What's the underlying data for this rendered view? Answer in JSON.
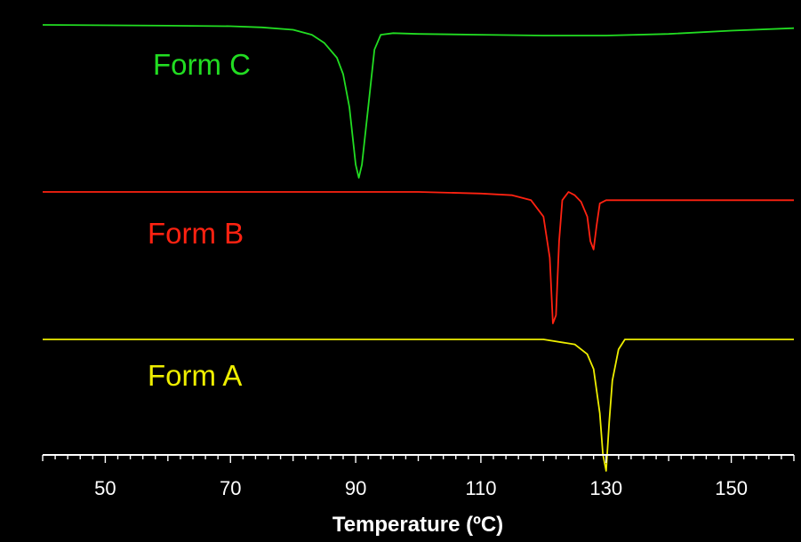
{
  "chart_data": {
    "type": "line",
    "title": "",
    "xlabel": "Temperature (ºC)",
    "ylabel": "",
    "xlim": [
      40,
      160
    ],
    "xticks": [
      50,
      70,
      90,
      110,
      130,
      150
    ],
    "grid": false,
    "background": "#000000",
    "axis_color": "#ffffff",
    "series": [
      {
        "name": "Form C",
        "color": "#22dd22",
        "baseline": 0.0,
        "x": [
          40,
          60,
          70,
          75,
          80,
          83,
          85,
          87,
          88,
          89,
          90,
          90.5,
          91,
          92,
          93,
          94,
          96,
          100,
          110,
          120,
          130,
          140,
          150,
          160
        ],
        "value": [
          0.0,
          -0.05,
          -0.08,
          -0.15,
          -0.3,
          -0.6,
          -1.1,
          -2.0,
          -3.0,
          -5.0,
          -8.5,
          -9.3,
          -8.5,
          -5.0,
          -1.5,
          -0.6,
          -0.5,
          -0.55,
          -0.6,
          -0.65,
          -0.65,
          -0.55,
          -0.35,
          -0.2
        ]
      },
      {
        "name": "Form B",
        "color": "#ff2211",
        "baseline": 0.0,
        "x": [
          40,
          60,
          80,
          100,
          110,
          115,
          118,
          120,
          121,
          121.5,
          122,
          122.5,
          123,
          124,
          125,
          126,
          127,
          127.5,
          128,
          128.5,
          129,
          130,
          135,
          140,
          150,
          160
        ],
        "value": [
          0.0,
          0.0,
          0.0,
          0.0,
          -0.1,
          -0.2,
          -0.5,
          -1.5,
          -4.0,
          -8.0,
          -7.5,
          -3.0,
          -0.5,
          0.0,
          -0.2,
          -0.6,
          -1.5,
          -3.0,
          -3.5,
          -2.0,
          -0.7,
          -0.5,
          -0.5,
          -0.5,
          -0.5,
          -0.5
        ]
      },
      {
        "name": "Form A",
        "color": "#eeee00",
        "baseline": 0.0,
        "x": [
          40,
          60,
          80,
          100,
          120,
          125,
          127,
          128,
          129,
          129.5,
          130,
          130.5,
          131,
          132,
          133,
          134,
          140,
          160
        ],
        "value": [
          0.0,
          0.0,
          0.0,
          0.0,
          0.0,
          -0.3,
          -0.9,
          -1.8,
          -4.5,
          -7.0,
          -8.0,
          -5.0,
          -2.5,
          -0.6,
          0.0,
          0.0,
          0.0,
          0.0
        ]
      }
    ]
  }
}
